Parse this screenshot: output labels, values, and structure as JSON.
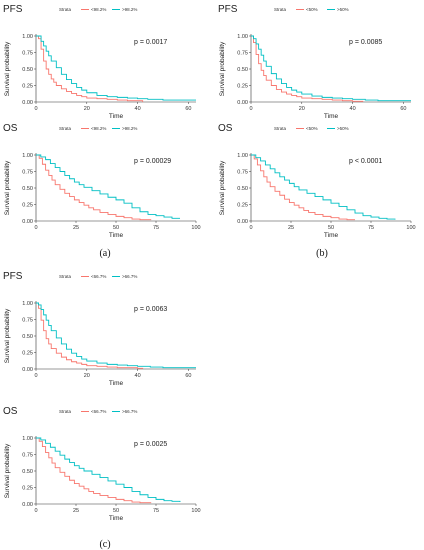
{
  "panels": [
    {
      "label": "(a)",
      "colors": {
        "low": "#f8766d",
        "high": "#00bfc4"
      },
      "plots": [
        {
          "title": "PFS",
          "pvalue": "p = 0.0017",
          "legend": {
            "title": "Strata",
            "low": "<98.2%",
            "high": ">98.2%"
          },
          "ylabel": "Survival probability",
          "xlabel": "Time",
          "xticks": [
            "0",
            "20",
            "40",
            "60"
          ],
          "yticks": [
            "0.00",
            "0.25",
            "0.50",
            "0.75",
            "1.00"
          ]
        },
        {
          "title": "OS",
          "pvalue": "p = 0.00029",
          "legend": {
            "title": "Strata",
            "low": "<98.2%",
            "high": ">98.2%"
          },
          "ylabel": "Survival probability",
          "xlabel": "Time",
          "xticks": [
            "0",
            "25",
            "50",
            "75",
            "100"
          ],
          "yticks": [
            "0.00",
            "0.25",
            "0.50",
            "0.75",
            "1.00"
          ]
        }
      ]
    },
    {
      "label": "(b)",
      "colors": {
        "low": "#f8766d",
        "high": "#00bfc4"
      },
      "plots": [
        {
          "title": "PFS",
          "pvalue": "p = 0.0085",
          "legend": {
            "title": "Strata",
            "low": "<50%",
            "high": ">50%"
          },
          "ylabel": "Survival probability",
          "xlabel": "Time",
          "xticks": [
            "0",
            "20",
            "40",
            "60"
          ],
          "yticks": [
            "0.00",
            "0.25",
            "0.50",
            "0.75",
            "1.00"
          ]
        },
        {
          "title": "OS",
          "pvalue": "p < 0.0001",
          "legend": {
            "title": "Strata",
            "low": "<50%",
            "high": ">50%"
          },
          "ylabel": "Survival probability",
          "xlabel": "Time",
          "xticks": [
            "0",
            "25",
            "50",
            "75",
            "100"
          ],
          "yticks": [
            "0.00",
            "0.25",
            "0.50",
            "0.75",
            "1.00"
          ]
        }
      ]
    },
    {
      "label": "(c)",
      "colors": {
        "low": "#f8766d",
        "high": "#00bfc4"
      },
      "plots": [
        {
          "title": "PFS",
          "pvalue": "p = 0.0063",
          "legend": {
            "title": "Strata",
            "low": "<66.7%",
            "high": ">66.7%"
          },
          "ylabel": "Survival probability",
          "xlabel": "Time",
          "xticks": [
            "0",
            "20",
            "40",
            "60"
          ],
          "yticks": [
            "0.00",
            "0.25",
            "0.50",
            "0.75",
            "1.00"
          ]
        },
        {
          "title": "OS",
          "pvalue": "p = 0.0025",
          "legend": {
            "title": "Strata",
            "low": "<66.7%",
            "high": ">66.7%"
          },
          "ylabel": "Survival probability",
          "xlabel": "Time",
          "xticks": [
            "0",
            "25",
            "50",
            "75",
            "100"
          ],
          "yticks": [
            "0.00",
            "0.25",
            "0.50",
            "0.75",
            "1.00"
          ]
        }
      ]
    }
  ],
  "chart_data": [
    {
      "type": "line",
      "step": true,
      "panel": "(a)",
      "title": "PFS",
      "xlabel": "Time",
      "ylabel": "Survival probability",
      "xlim": [
        0,
        63
      ],
      "ylim": [
        0,
        1
      ],
      "pvalue": "p = 0.0017",
      "series": [
        {
          "name": "<98.2%",
          "x": [
            0,
            1,
            2,
            3,
            4,
            5,
            6,
            7,
            8,
            10,
            12,
            14,
            16,
            18,
            20,
            24,
            28,
            32,
            36,
            42
          ],
          "y": [
            1,
            0.96,
            0.8,
            0.62,
            0.5,
            0.42,
            0.35,
            0.3,
            0.25,
            0.2,
            0.16,
            0.13,
            0.1,
            0.08,
            0.06,
            0.05,
            0.04,
            0.03,
            0.02,
            0
          ]
        },
        {
          "name": ">98.2%",
          "x": [
            0,
            2,
            3,
            4,
            5,
            6,
            8,
            10,
            12,
            14,
            16,
            18,
            20,
            24,
            28,
            32,
            36,
            40,
            44,
            50,
            63
          ],
          "y": [
            1,
            0.92,
            0.85,
            0.77,
            0.7,
            0.62,
            0.52,
            0.42,
            0.34,
            0.28,
            0.22,
            0.18,
            0.14,
            0.1,
            0.08,
            0.07,
            0.06,
            0.05,
            0.04,
            0.03,
            0.03
          ]
        }
      ]
    },
    {
      "type": "line",
      "step": true,
      "panel": "(a)",
      "title": "OS",
      "xlabel": "Time",
      "ylabel": "Survival probability",
      "xlim": [
        0,
        100
      ],
      "ylim": [
        0,
        1
      ],
      "pvalue": "p = 0.00029",
      "series": [
        {
          "name": "<98.2%",
          "x": [
            0,
            2,
            4,
            6,
            8,
            10,
            12,
            15,
            18,
            21,
            24,
            27,
            30,
            33,
            36,
            40,
            45,
            50,
            55,
            60,
            65,
            72
          ],
          "y": [
            1,
            0.95,
            0.86,
            0.77,
            0.69,
            0.62,
            0.55,
            0.48,
            0.42,
            0.37,
            0.32,
            0.28,
            0.24,
            0.2,
            0.17,
            0.13,
            0.1,
            0.07,
            0.05,
            0.03,
            0.02,
            0.02
          ]
        },
        {
          "name": ">98.2%",
          "x": [
            0,
            3,
            6,
            9,
            12,
            15,
            18,
            21,
            24,
            27,
            30,
            35,
            40,
            45,
            50,
            55,
            60,
            65,
            70,
            75,
            80,
            85,
            90
          ],
          "y": [
            1,
            0.97,
            0.93,
            0.87,
            0.81,
            0.75,
            0.69,
            0.64,
            0.59,
            0.55,
            0.51,
            0.46,
            0.41,
            0.36,
            0.32,
            0.27,
            0.2,
            0.14,
            0.1,
            0.08,
            0.06,
            0.04,
            0.04
          ]
        }
      ]
    },
    {
      "type": "line",
      "step": true,
      "panel": "(b)",
      "title": "PFS",
      "xlabel": "Time",
      "ylabel": "Survival probability",
      "xlim": [
        0,
        63
      ],
      "ylim": [
        0,
        1
      ],
      "pvalue": "p = 0.0085",
      "series": [
        {
          "name": "<50%",
          "x": [
            0,
            1,
            2,
            3,
            4,
            5,
            6,
            8,
            10,
            12,
            14,
            16,
            18,
            20,
            24,
            28,
            32,
            36,
            40,
            44
          ],
          "y": [
            1,
            0.9,
            0.72,
            0.58,
            0.48,
            0.4,
            0.33,
            0.25,
            0.19,
            0.15,
            0.12,
            0.1,
            0.08,
            0.06,
            0.05,
            0.04,
            0.03,
            0.02,
            0.01,
            0
          ]
        },
        {
          "name": ">50%",
          "x": [
            0,
            1,
            2,
            3,
            4,
            5,
            6,
            8,
            10,
            12,
            14,
            16,
            18,
            20,
            24,
            28,
            32,
            36,
            40,
            45,
            50,
            63
          ],
          "y": [
            1,
            0.96,
            0.88,
            0.8,
            0.71,
            0.62,
            0.54,
            0.43,
            0.35,
            0.28,
            0.22,
            0.18,
            0.15,
            0.12,
            0.09,
            0.07,
            0.06,
            0.05,
            0.04,
            0.03,
            0.02,
            0.02
          ]
        }
      ]
    },
    {
      "type": "line",
      "step": true,
      "panel": "(b)",
      "title": "OS",
      "xlabel": "Time",
      "ylabel": "Survival probability",
      "xlim": [
        0,
        100
      ],
      "ylim": [
        0,
        1
      ],
      "pvalue": "p < 0.0001",
      "series": [
        {
          "name": "<50%",
          "x": [
            0,
            2,
            4,
            6,
            8,
            10,
            12,
            15,
            18,
            21,
            24,
            27,
            30,
            33,
            36,
            40,
            45,
            50,
            55,
            60,
            65
          ],
          "y": [
            1,
            0.94,
            0.85,
            0.76,
            0.67,
            0.59,
            0.52,
            0.45,
            0.39,
            0.33,
            0.28,
            0.24,
            0.2,
            0.16,
            0.13,
            0.1,
            0.07,
            0.05,
            0.03,
            0.02,
            0.02
          ]
        },
        {
          "name": ">50%",
          "x": [
            0,
            3,
            6,
            9,
            12,
            15,
            18,
            21,
            24,
            27,
            30,
            35,
            40,
            45,
            50,
            55,
            60,
            65,
            70,
            75,
            80,
            85,
            90
          ],
          "y": [
            1,
            0.96,
            0.91,
            0.85,
            0.79,
            0.73,
            0.67,
            0.62,
            0.57,
            0.52,
            0.47,
            0.42,
            0.37,
            0.32,
            0.27,
            0.22,
            0.17,
            0.12,
            0.08,
            0.06,
            0.04,
            0.03,
            0.02
          ]
        }
      ]
    },
    {
      "type": "line",
      "step": true,
      "panel": "(c)",
      "title": "PFS",
      "xlabel": "Time",
      "ylabel": "Survival probability",
      "xlim": [
        0,
        63
      ],
      "ylim": [
        0,
        1
      ],
      "pvalue": "p = 0.0063",
      "series": [
        {
          "name": "<66.7%",
          "x": [
            0,
            1,
            2,
            3,
            4,
            5,
            6,
            8,
            10,
            12,
            14,
            16,
            18,
            20,
            24,
            28,
            32,
            36,
            40,
            42
          ],
          "y": [
            1,
            0.92,
            0.74,
            0.58,
            0.46,
            0.38,
            0.31,
            0.24,
            0.18,
            0.14,
            0.11,
            0.09,
            0.07,
            0.05,
            0.04,
            0.03,
            0.02,
            0.02,
            0.01,
            0
          ]
        },
        {
          "name": ">66.7%",
          "x": [
            0,
            1,
            2,
            3,
            4,
            5,
            6,
            8,
            10,
            12,
            14,
            16,
            18,
            20,
            24,
            28,
            32,
            36,
            40,
            45,
            50,
            63
          ],
          "y": [
            1,
            0.97,
            0.9,
            0.82,
            0.74,
            0.66,
            0.58,
            0.47,
            0.38,
            0.3,
            0.24,
            0.19,
            0.15,
            0.12,
            0.09,
            0.07,
            0.06,
            0.05,
            0.04,
            0.03,
            0.02,
            0.02
          ]
        }
      ]
    },
    {
      "type": "line",
      "step": true,
      "panel": "(c)",
      "title": "OS",
      "xlabel": "Time",
      "ylabel": "Survival probability",
      "xlim": [
        0,
        100
      ],
      "ylim": [
        0,
        1
      ],
      "pvalue": "p = 0.0025",
      "series": [
        {
          "name": "<66.7%",
          "x": [
            0,
            2,
            4,
            6,
            8,
            10,
            12,
            15,
            18,
            21,
            24,
            27,
            30,
            33,
            36,
            40,
            45,
            50,
            55,
            60,
            65,
            72
          ],
          "y": [
            1,
            0.95,
            0.87,
            0.78,
            0.7,
            0.62,
            0.55,
            0.48,
            0.42,
            0.36,
            0.31,
            0.27,
            0.23,
            0.19,
            0.16,
            0.13,
            0.1,
            0.07,
            0.05,
            0.03,
            0.02,
            0.02
          ]
        },
        {
          "name": ">66.7%",
          "x": [
            0,
            3,
            6,
            9,
            12,
            15,
            18,
            21,
            24,
            27,
            30,
            35,
            40,
            45,
            50,
            55,
            60,
            65,
            70,
            75,
            80,
            85,
            90
          ],
          "y": [
            1,
            0.97,
            0.92,
            0.86,
            0.8,
            0.74,
            0.68,
            0.63,
            0.58,
            0.54,
            0.5,
            0.45,
            0.4,
            0.35,
            0.3,
            0.25,
            0.19,
            0.14,
            0.1,
            0.07,
            0.05,
            0.04,
            0.03
          ]
        }
      ]
    }
  ]
}
